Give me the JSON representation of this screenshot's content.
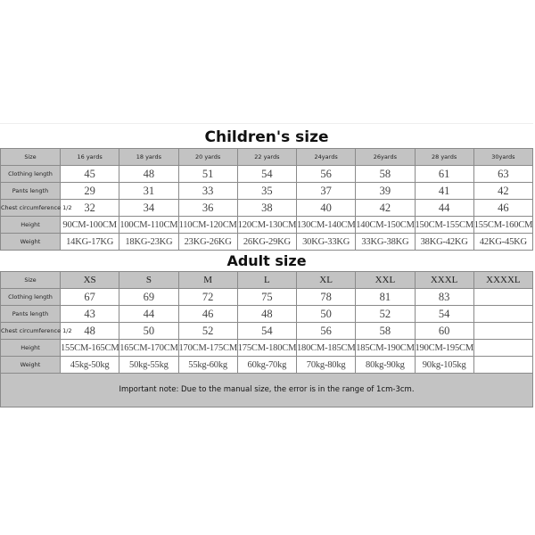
{
  "children": {
    "title": "Children's size",
    "row_labels": [
      "Size",
      "Clothing length",
      "Pants length",
      "Chest circumference 1/2",
      "Height",
      "Weight"
    ],
    "sizes": [
      "16 yards",
      "18 yards",
      "20 yards",
      "22 yards",
      "24yards",
      "26yards",
      "28 yards",
      "30yards"
    ],
    "rows": [
      [
        "45",
        "48",
        "51",
        "54",
        "56",
        "58",
        "61",
        "63"
      ],
      [
        "29",
        "31",
        "33",
        "35",
        "37",
        "39",
        "41",
        "42"
      ],
      [
        "32",
        "34",
        "36",
        "38",
        "40",
        "42",
        "44",
        "46"
      ],
      [
        "90CM-100CM",
        "100CM-110CM",
        "110CM-120CM",
        "120CM-130CM",
        "130CM-140CM",
        "140CM-150CM",
        "150CM-155CM",
        "155CM-160CM"
      ],
      [
        "14KG-17KG",
        "18KG-23KG",
        "23KG-26KG",
        "26KG-29KG",
        "30KG-33KG",
        "33KG-38KG",
        "38KG-42KG",
        "42KG-45KG"
      ]
    ]
  },
  "adult": {
    "title": "Adult size",
    "row_labels": [
      "Size",
      "Clothing length",
      "Pants length",
      "Chest circumference 1/2",
      "Height",
      "Weight"
    ],
    "sizes": [
      "XS",
      "S",
      "M",
      "L",
      "XL",
      "XXL",
      "XXXL",
      "XXXXL"
    ],
    "rows": [
      [
        "67",
        "69",
        "72",
        "75",
        "78",
        "81",
        "83",
        ""
      ],
      [
        "43",
        "44",
        "46",
        "48",
        "50",
        "52",
        "54",
        ""
      ],
      [
        "48",
        "50",
        "52",
        "54",
        "56",
        "58",
        "60",
        ""
      ],
      [
        "155CM-165CM",
        "165CM-170CM",
        "170CM-175CM",
        "175CM-180CM",
        "180CM-185CM",
        "185CM-190CM",
        "190CM-195CM",
        ""
      ],
      [
        "45kg-50kg",
        "50kg-55kg",
        "55kg-60kg",
        "60kg-70kg",
        "70kg-80kg",
        "80kg-90kg",
        "90kg-105kg",
        ""
      ]
    ]
  },
  "note": "Important note: Due to the manual size, the error is in the range of 1cm-3cm.",
  "colors": {
    "header_bg": "#c3c3c3",
    "border": "#8a8a8a"
  }
}
